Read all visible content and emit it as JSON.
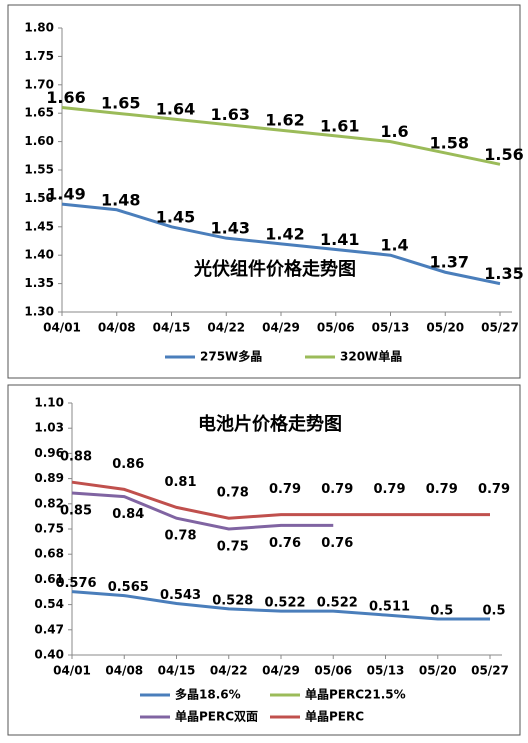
{
  "chart_data": [
    {
      "type": "line",
      "title": "光伏组件价格走势图",
      "categories": [
        "04/01",
        "04/08",
        "04/15",
        "04/22",
        "04/29",
        "05/06",
        "05/13",
        "05/20",
        "05/27"
      ],
      "ylim": [
        1.3,
        1.8
      ],
      "yticks": [
        {
          "value": 1.3,
          "label": "1.30"
        },
        1.35,
        {
          "value": 1.4,
          "label": "1.40"
        },
        1.45,
        {
          "value": 1.5,
          "label": "1.50"
        },
        1.55,
        {
          "value": 1.6,
          "label": "1.60"
        },
        1.65,
        {
          "value": 1.7,
          "label": "1.70"
        },
        1.75,
        {
          "value": 1.8,
          "label": "1.80"
        }
      ],
      "grid": false,
      "series": [
        {
          "name": "275W多晶",
          "color": "#4a7ebb",
          "values": [
            1.49,
            1.48,
            1.45,
            1.43,
            1.42,
            1.41,
            1.4,
            1.37,
            1.35
          ]
        },
        {
          "name": "320W单晶",
          "color": "#9bbb59",
          "values": [
            1.66,
            1.65,
            1.64,
            1.63,
            1.62,
            1.61,
            1.6,
            1.58,
            1.56
          ]
        }
      ]
    },
    {
      "type": "line",
      "title": "电池片价格走势图",
      "categories": [
        "04/01",
        "04/08",
        "04/15",
        "04/22",
        "04/29",
        "05/06",
        "05/13",
        "05/20",
        "05/27"
      ],
      "ylim": [
        0.4,
        1.1
      ],
      "yticks": [
        {
          "value": 0.4,
          "label": "0.40"
        },
        0.47,
        0.54,
        0.61,
        0.68,
        0.75,
        0.82,
        0.89,
        0.96,
        1.03,
        {
          "value": 1.1,
          "label": "1.10"
        }
      ],
      "grid": false,
      "series": [
        {
          "name": "多晶18.6%",
          "color": "#4a7ebb",
          "values": [
            0.576,
            0.565,
            0.543,
            0.528,
            0.522,
            0.522,
            0.511,
            0.5,
            0.5
          ]
        },
        {
          "name": "单晶PERC21.5%",
          "color": "#9bbb59",
          "values": [
            null,
            null,
            null,
            null,
            null,
            null,
            null,
            null,
            null
          ]
        },
        {
          "name": "单晶PERC双面",
          "color": "#8064a2",
          "values": [
            0.85,
            0.84,
            0.78,
            0.75,
            0.76,
            0.76,
            null,
            null,
            null
          ]
        },
        {
          "name": "单晶PERC",
          "color": "#c0504d",
          "values": [
            0.88,
            0.86,
            0.81,
            0.78,
            0.79,
            0.79,
            0.79,
            0.79,
            0.79
          ]
        }
      ]
    }
  ]
}
